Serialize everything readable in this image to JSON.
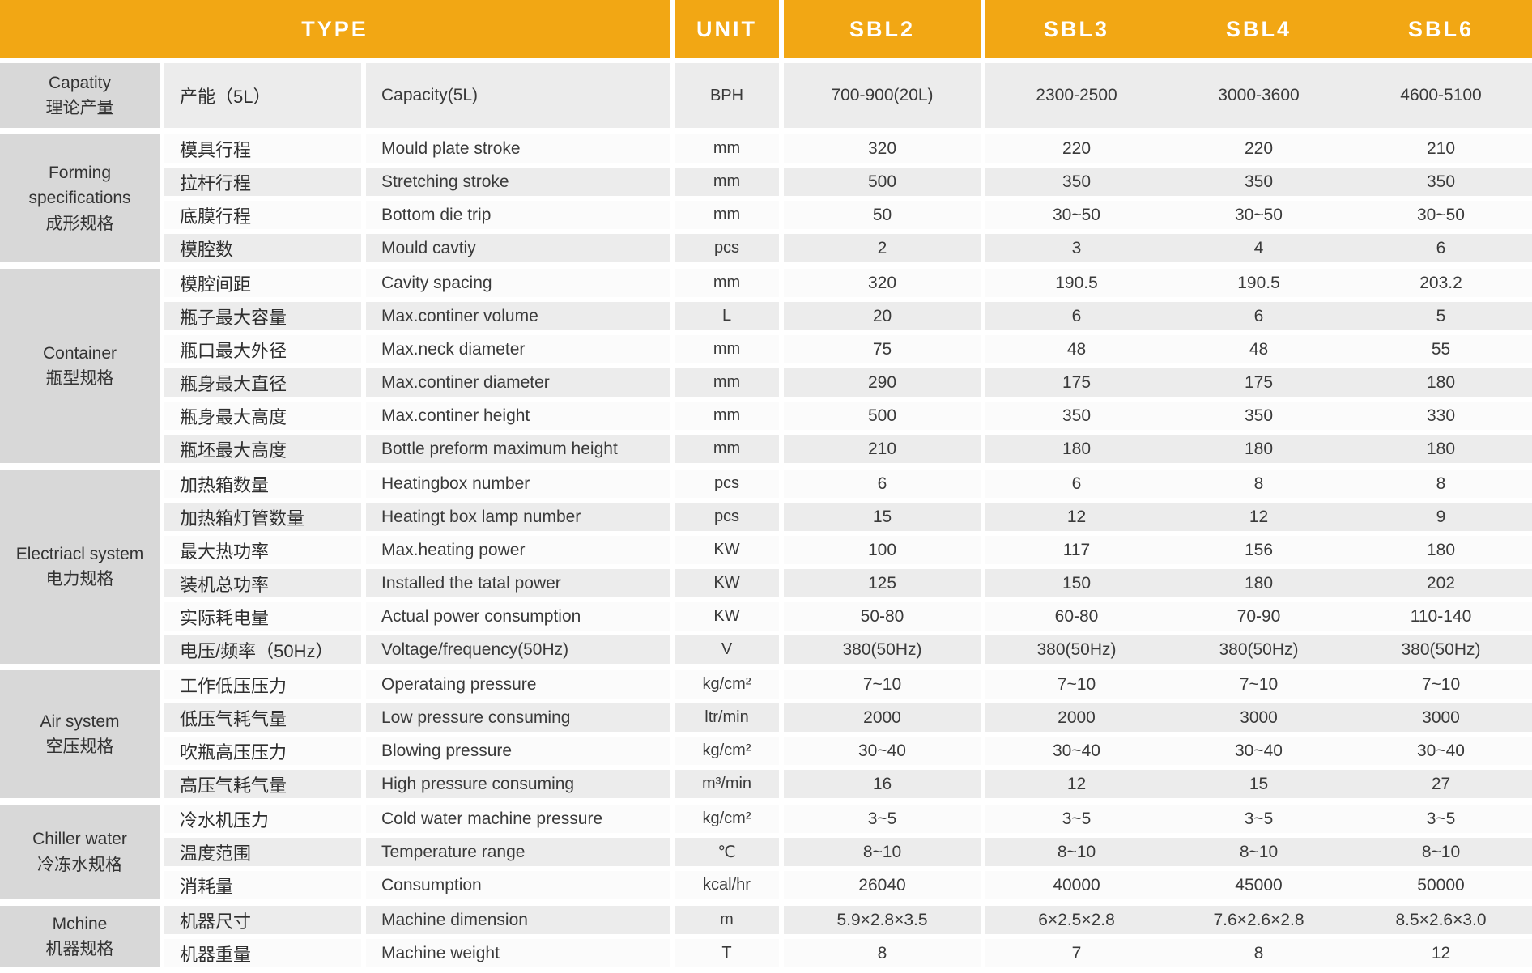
{
  "header": {
    "type_label": "TYPE",
    "unit_label": "UNIT",
    "models": [
      "SBL2",
      "SBL3",
      "SBL4",
      "SBL6"
    ]
  },
  "colors": {
    "header_bg": "#F2A714",
    "header_text": "#FFFFFF",
    "group_label_bg": "#D8D8D8",
    "row_shaded_bg": "#ECECEC",
    "row_plain_bg": "#FBFBFB",
    "body_text": "#333333"
  },
  "groups": [
    {
      "label_en": "Capatity",
      "label_cn": "理论产量",
      "rows": [
        {
          "cn": "产能（5L）",
          "en": "Capacity(5L)",
          "unit": "BPH",
          "values": [
            "700-900(20L)",
            "2300-2500",
            "3000-3600",
            "4600-5100"
          ]
        }
      ]
    },
    {
      "label_en": "Forming specifications",
      "label_cn": "成形规格",
      "rows": [
        {
          "cn": "模具行程",
          "en": "Mould plate stroke",
          "unit": "mm",
          "values": [
            "320",
            "220",
            "220",
            "210"
          ]
        },
        {
          "cn": "拉杆行程",
          "en": "Stretching stroke",
          "unit": "mm",
          "values": [
            "500",
            "350",
            "350",
            "350"
          ]
        },
        {
          "cn": "底膜行程",
          "en": "Bottom die trip",
          "unit": "mm",
          "values": [
            "50",
            "30~50",
            "30~50",
            "30~50"
          ]
        },
        {
          "cn": "模腔数",
          "en": "Mould cavtiy",
          "unit": "pcs",
          "values": [
            "2",
            "3",
            "4",
            "6"
          ]
        }
      ]
    },
    {
      "label_en": "Container",
      "label_cn": "瓶型规格",
      "rows": [
        {
          "cn": "模腔间距",
          "en": "Cavity spacing",
          "unit": "mm",
          "values": [
            "320",
            "190.5",
            "190.5",
            "203.2"
          ]
        },
        {
          "cn": "瓶子最大容量",
          "en": "Max.continer volume",
          "unit": "L",
          "values": [
            "20",
            "6",
            "6",
            "5"
          ]
        },
        {
          "cn": "瓶口最大外径",
          "en": "Max.neck diameter",
          "unit": "mm",
          "values": [
            "75",
            "48",
            "48",
            "55"
          ]
        },
        {
          "cn": "瓶身最大直径",
          "en": "Max.continer diameter",
          "unit": "mm",
          "values": [
            "290",
            "175",
            "175",
            "180"
          ]
        },
        {
          "cn": "瓶身最大高度",
          "en": "Max.continer height",
          "unit": "mm",
          "values": [
            "500",
            "350",
            "350",
            "330"
          ]
        },
        {
          "cn": "瓶坯最大高度",
          "en": "Bottle preform maximum height",
          "unit": "mm",
          "values": [
            "210",
            "180",
            "180",
            "180"
          ]
        }
      ]
    },
    {
      "label_en": "Electriacl system",
      "label_cn": "电力规格",
      "rows": [
        {
          "cn": "加热箱数量",
          "en": "Heatingbox number",
          "unit": "pcs",
          "values": [
            "6",
            "6",
            "8",
            "8"
          ]
        },
        {
          "cn": "加热箱灯管数量",
          "en": "Heatingt box lamp number",
          "unit": "pcs",
          "values": [
            "15",
            "12",
            "12",
            "9"
          ]
        },
        {
          "cn": "最大热功率",
          "en": "Max.heating power",
          "unit": "KW",
          "values": [
            "100",
            "117",
            "156",
            "180"
          ]
        },
        {
          "cn": "装机总功率",
          "en": "Installed the tatal power",
          "unit": "KW",
          "values": [
            "125",
            "150",
            "180",
            "202"
          ]
        },
        {
          "cn": "实际耗电量",
          "en": "Actual power consumption",
          "unit": "KW",
          "values": [
            "50-80",
            "60-80",
            "70-90",
            "110-140"
          ]
        },
        {
          "cn": "电压/频率（50Hz）",
          "en": "Voltage/frequency(50Hz)",
          "unit": "V",
          "values": [
            "380(50Hz)",
            "380(50Hz)",
            "380(50Hz)",
            "380(50Hz)"
          ]
        }
      ]
    },
    {
      "label_en": "Air system",
      "label_cn": "空压规格",
      "rows": [
        {
          "cn": "工作低压压力",
          "en": "Operataing pressure",
          "unit": "kg/cm²",
          "values": [
            "7~10",
            "7~10",
            "7~10",
            "7~10"
          ]
        },
        {
          "cn": "低压气耗气量",
          "en": "Low pressure consuming",
          "unit": "ltr/min",
          "values": [
            "2000",
            "2000",
            "3000",
            "3000"
          ]
        },
        {
          "cn": "吹瓶高压压力",
          "en": "Blowing pressure",
          "unit": "kg/cm²",
          "values": [
            "30~40",
            "30~40",
            "30~40",
            "30~40"
          ]
        },
        {
          "cn": "高压气耗气量",
          "en": "High pressure consuming",
          "unit": "m³/min",
          "values": [
            "16",
            "12",
            "15",
            "27"
          ]
        }
      ]
    },
    {
      "label_en": "Chiller water",
      "label_cn": "冷冻水规格",
      "rows": [
        {
          "cn": "冷水机压力",
          "en": "Cold water machine pressure",
          "unit": "kg/cm²",
          "values": [
            "3~5",
            "3~5",
            "3~5",
            "3~5"
          ]
        },
        {
          "cn": "温度范围",
          "en": "Temperature range",
          "unit": "℃",
          "values": [
            "8~10",
            "8~10",
            "8~10",
            "8~10"
          ]
        },
        {
          "cn": "消耗量",
          "en": "Consumption",
          "unit": "kcal/hr",
          "values": [
            "26040",
            "40000",
            "45000",
            "50000"
          ]
        }
      ]
    },
    {
      "label_en": "Mchine",
      "label_cn": "机器规格",
      "rows": [
        {
          "cn": "机器尺寸",
          "en": "Machine dimension",
          "unit": "m",
          "values": [
            "5.9×2.8×3.5",
            "6×2.5×2.8",
            "7.6×2.6×2.8",
            "8.5×2.6×3.0"
          ]
        },
        {
          "cn": "机器重量",
          "en": "Machine weight",
          "unit": "T",
          "values": [
            "8",
            "7",
            "8",
            "12"
          ]
        }
      ]
    }
  ]
}
